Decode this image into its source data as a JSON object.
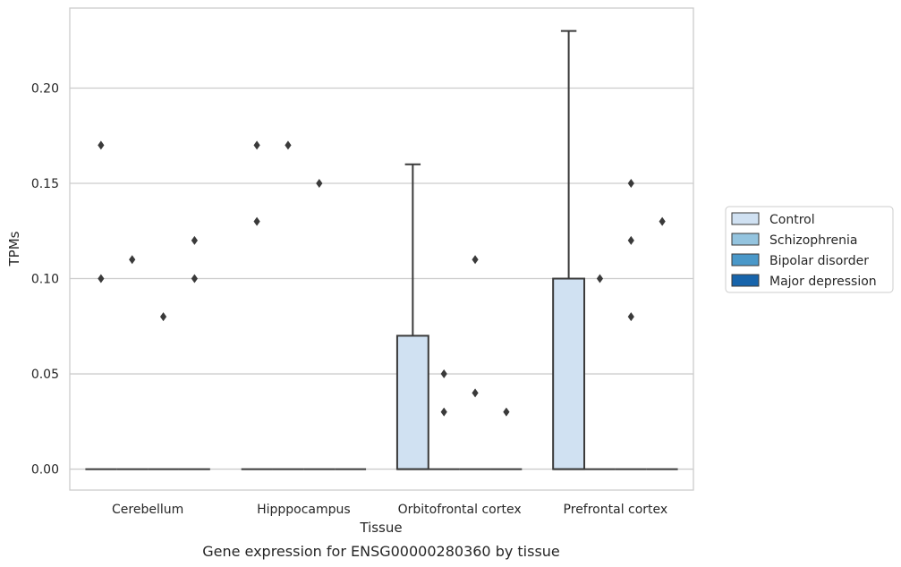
{
  "chart_data": {
    "type": "box",
    "caption": "Gene expression for ENSG00000280360 by tissue",
    "xlabel": "Tissue",
    "ylabel": "TPMs",
    "ylim": [
      -0.011,
      0.242
    ],
    "yticks": [
      0.0,
      0.05,
      0.1,
      0.15,
      0.2
    ],
    "ytick_labels": [
      "0.00",
      "0.05",
      "0.10",
      "0.15",
      "0.20"
    ],
    "grid": "horizontal",
    "legend_position": "right",
    "categories": [
      "Cerebellum",
      "Hipppocampus",
      "Orbitofrontal cortex",
      "Prefrontal cortex"
    ],
    "series": [
      {
        "name": "Control",
        "color": "#d0e1f2"
      },
      {
        "name": "Schizophrenia",
        "color": "#94c4df"
      },
      {
        "name": "Bipolar disorder",
        "color": "#4a98c9"
      },
      {
        "name": "Major depression",
        "color": "#1764ab"
      }
    ],
    "boxes": [
      {
        "category": "Cerebellum",
        "series": "Control",
        "q1": 0,
        "median": 0,
        "q3": 0,
        "whisker_low": 0,
        "whisker_high": 0,
        "outliers": [
          0.17,
          0.1
        ]
      },
      {
        "category": "Cerebellum",
        "series": "Schizophrenia",
        "q1": 0,
        "median": 0,
        "q3": 0,
        "whisker_low": 0,
        "whisker_high": 0,
        "outliers": [
          0.11
        ]
      },
      {
        "category": "Cerebellum",
        "series": "Bipolar disorder",
        "q1": 0,
        "median": 0,
        "q3": 0,
        "whisker_low": 0,
        "whisker_high": 0,
        "outliers": [
          0.08
        ]
      },
      {
        "category": "Cerebellum",
        "series": "Major depression",
        "q1": 0,
        "median": 0,
        "q3": 0,
        "whisker_low": 0,
        "whisker_high": 0,
        "outliers": [
          0.12,
          0.1
        ]
      },
      {
        "category": "Hipppocampus",
        "series": "Control",
        "q1": 0,
        "median": 0,
        "q3": 0,
        "whisker_low": 0,
        "whisker_high": 0,
        "outliers": [
          0.17,
          0.13
        ]
      },
      {
        "category": "Hipppocampus",
        "series": "Schizophrenia",
        "q1": 0,
        "median": 0,
        "q3": 0,
        "whisker_low": 0,
        "whisker_high": 0,
        "outliers": [
          0.17
        ]
      },
      {
        "category": "Hipppocampus",
        "series": "Bipolar disorder",
        "q1": 0,
        "median": 0,
        "q3": 0,
        "whisker_low": 0,
        "whisker_high": 0,
        "outliers": [
          0.15
        ]
      },
      {
        "category": "Hipppocampus",
        "series": "Major depression",
        "q1": 0,
        "median": 0,
        "q3": 0,
        "whisker_low": 0,
        "whisker_high": 0,
        "outliers": []
      },
      {
        "category": "Orbitofrontal cortex",
        "series": "Control",
        "q1": 0,
        "median": 0,
        "q3": 0.07,
        "whisker_low": 0,
        "whisker_high": 0.16,
        "outliers": []
      },
      {
        "category": "Orbitofrontal cortex",
        "series": "Schizophrenia",
        "q1": 0,
        "median": 0,
        "q3": 0,
        "whisker_low": 0,
        "whisker_high": 0,
        "outliers": [
          0.05,
          0.03
        ]
      },
      {
        "category": "Orbitofrontal cortex",
        "series": "Bipolar disorder",
        "q1": 0,
        "median": 0,
        "q3": 0,
        "whisker_low": 0,
        "whisker_high": 0,
        "outliers": [
          0.11,
          0.04
        ]
      },
      {
        "category": "Orbitofrontal cortex",
        "series": "Major depression",
        "q1": 0,
        "median": 0,
        "q3": 0,
        "whisker_low": 0,
        "whisker_high": 0,
        "outliers": [
          0.03
        ]
      },
      {
        "category": "Prefrontal cortex",
        "series": "Control",
        "q1": 0,
        "median": 0,
        "q3": 0.1,
        "whisker_low": 0,
        "whisker_high": 0.23,
        "outliers": []
      },
      {
        "category": "Prefrontal cortex",
        "series": "Schizophrenia",
        "q1": 0,
        "median": 0,
        "q3": 0,
        "whisker_low": 0,
        "whisker_high": 0,
        "outliers": [
          0.1
        ]
      },
      {
        "category": "Prefrontal cortex",
        "series": "Bipolar disorder",
        "q1": 0,
        "median": 0,
        "q3": 0,
        "whisker_low": 0,
        "whisker_high": 0,
        "outliers": [
          0.15,
          0.12,
          0.08
        ]
      },
      {
        "category": "Prefrontal cortex",
        "series": "Major depression",
        "q1": 0,
        "median": 0,
        "q3": 0,
        "whisker_low": 0,
        "whisker_high": 0,
        "outliers": [
          0.13
        ]
      }
    ]
  }
}
